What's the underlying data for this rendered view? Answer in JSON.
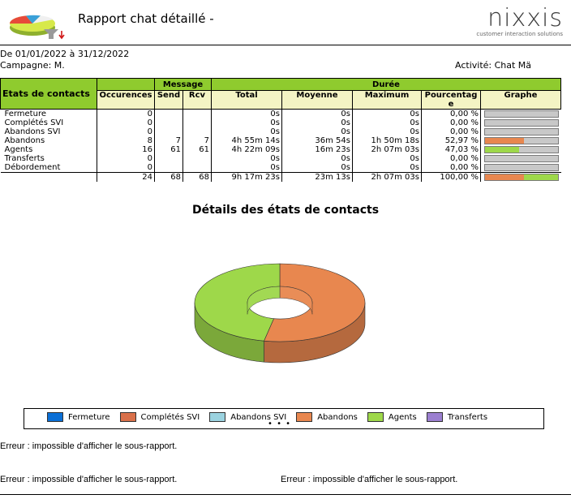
{
  "header": {
    "title": "Rapport chat détaillé -",
    "brand_name": "nixxis",
    "brand_tagline": "customer interaction solutions"
  },
  "meta": {
    "period": "De 01/01/2022 à 31/12/2022",
    "campaign": "Campagne: M.",
    "activity": "Activité: Chat Mä"
  },
  "table": {
    "group_headers": {
      "message": "Message",
      "duree": "Durée"
    },
    "columns": [
      "Etats de contacts",
      "Occurences",
      "Send",
      "Rcv",
      "Total",
      "Moyenne",
      "Maximum",
      "Pourcentage",
      "Graphe"
    ],
    "rows": [
      {
        "label": "Fermeture",
        "occ": "0",
        "send": "",
        "rcv": "",
        "total": "0s",
        "moy": "0s",
        "max": "0s",
        "pct": "0,00 %",
        "pct_value": 0,
        "color": "#0a6fd6"
      },
      {
        "label": "Complétés SVI",
        "occ": "0",
        "send": "",
        "rcv": "",
        "total": "0s",
        "moy": "0s",
        "max": "0s",
        "pct": "0,00 %",
        "pct_value": 0,
        "color": "#d9704a"
      },
      {
        "label": "Abandons SVI",
        "occ": "0",
        "send": "",
        "rcv": "",
        "total": "0s",
        "moy": "0s",
        "max": "0s",
        "pct": "0,00 %",
        "pct_value": 0,
        "color": "#9bd3e0"
      },
      {
        "label": "Abandons",
        "occ": "8",
        "send": "7",
        "rcv": "7",
        "total": "4h 55m 14s",
        "moy": "36m 54s",
        "max": "1h 50m 18s",
        "pct": "52,97 %",
        "pct_value": 52.97,
        "color": "#e8874f"
      },
      {
        "label": "Agents",
        "occ": "16",
        "send": "61",
        "rcv": "61",
        "total": "4h 22m 09s",
        "moy": "16m 23s",
        "max": "2h 07m 03s",
        "pct": "47,03 %",
        "pct_value": 47.03,
        "color": "#9ed84a"
      },
      {
        "label": "Transferts",
        "occ": "0",
        "send": "",
        "rcv": "",
        "total": "0s",
        "moy": "0s",
        "max": "0s",
        "pct": "0,00 %",
        "pct_value": 0,
        "color": "#9b7fd0"
      },
      {
        "label": "Débordement",
        "occ": "0",
        "send": "",
        "rcv": "",
        "total": "0s",
        "moy": "0s",
        "max": "0s",
        "pct": "0,00 %",
        "pct_value": 0,
        "color": "#cccccc"
      }
    ],
    "totals": {
      "occ": "24",
      "send": "68",
      "rcv": "68",
      "total": "9h 17m 23s",
      "moy": "23m 13s",
      "max": "2h 07m 03s",
      "pct": "100,00 %"
    }
  },
  "chart_data": {
    "type": "pie",
    "title": "Détails des états de contacts",
    "categories": [
      "Fermeture",
      "Complétés SVI",
      "Abandons SVI",
      "Abandons",
      "Agents",
      "Transferts"
    ],
    "values": [
      0,
      0,
      0,
      52.97,
      47.03,
      0
    ],
    "colors": [
      "#0a6fd6",
      "#d9704a",
      "#9bd3e0",
      "#e8874f",
      "#9ed84a",
      "#9b7fd0"
    ],
    "legend_more": "• • •",
    "legend_position": "bottom"
  },
  "errors": {
    "e1": "Erreur : impossible d'afficher le sous-rapport.",
    "e2": "Erreur : impossible d'afficher le sous-rapport.",
    "e3": "Erreur : impossible d'afficher le sous-rapport."
  }
}
